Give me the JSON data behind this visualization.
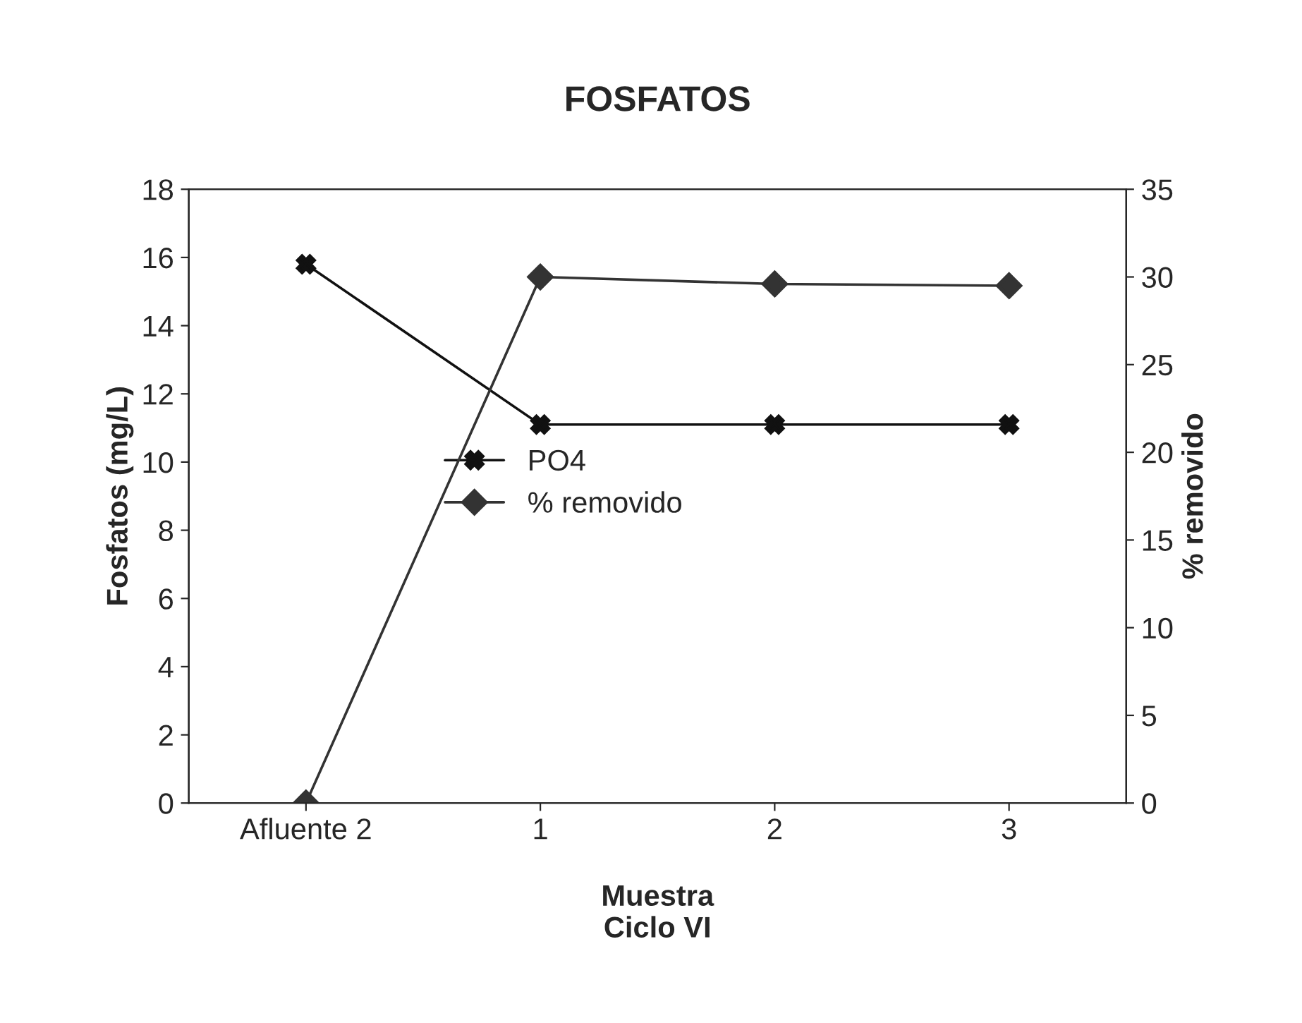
{
  "chart_data": {
    "type": "line",
    "title": "FOSFATOS",
    "xlabel": "Muestra\nCiclo VI",
    "ylabel": "Fosfatos (mg/L)",
    "y2label": "% removido",
    "categories": [
      "Afluente 2",
      "1",
      "2",
      "3"
    ],
    "series": [
      {
        "name": "PO4",
        "color": "#111111",
        "marker": "cross",
        "values": [
          15.8,
          11.1,
          11.1,
          11.1
        ]
      },
      {
        "name": "% removido",
        "color": "#333333",
        "marker": "diamond",
        "axis": "y2",
        "values": [
          0,
          30,
          29.6,
          29.5
        ]
      }
    ],
    "ylim": [
      0,
      18
    ],
    "yticks": [
      0,
      2,
      4,
      6,
      8,
      10,
      12,
      14,
      16,
      18
    ],
    "y2lim": [
      0,
      35
    ],
    "y2ticks": [
      0,
      5,
      10,
      15,
      20,
      25,
      30,
      35
    ],
    "grid": false,
    "legend": "center",
    "line_style": "solid"
  }
}
